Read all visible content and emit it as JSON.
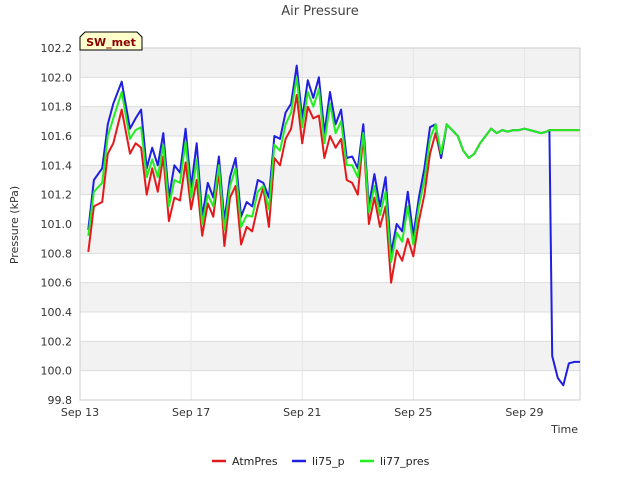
{
  "chart_data": {
    "type": "line",
    "title": "Air Pressure",
    "xlabel": "Time",
    "ylabel": "Pressure (kPa)",
    "badge": "SW_met",
    "ylim": [
      99.8,
      102.2
    ],
    "yticks": [
      "99.8",
      "100.0",
      "100.2",
      "100.4",
      "100.6",
      "100.8",
      "101.0",
      "101.2",
      "101.4",
      "101.6",
      "101.8",
      "102.0",
      "102.2"
    ],
    "xlim": [
      0,
      18
    ],
    "xticks": [
      {
        "day": 0,
        "label": "Sep 13"
      },
      {
        "day": 4,
        "label": "Sep 17"
      },
      {
        "day": 8,
        "label": "Sep 21"
      },
      {
        "day": 12,
        "label": "Sep 25"
      },
      {
        "day": 16,
        "label": "Sep 29"
      }
    ],
    "x": [
      0.3,
      0.5,
      0.8,
      1.0,
      1.2,
      1.5,
      1.8,
      2.0,
      2.2,
      2.4,
      2.6,
      2.8,
      3.0,
      3.2,
      3.4,
      3.6,
      3.8,
      4.0,
      4.2,
      4.4,
      4.6,
      4.8,
      5.0,
      5.2,
      5.4,
      5.6,
      5.8,
      6.0,
      6.2,
      6.4,
      6.6,
      6.8,
      7.0,
      7.2,
      7.4,
      7.6,
      7.8,
      8.0,
      8.2,
      8.4,
      8.6,
      8.8,
      9.0,
      9.2,
      9.4,
      9.6,
      9.8,
      10.0,
      10.2,
      10.4,
      10.6,
      10.8,
      11.0,
      11.2,
      11.4,
      11.6,
      11.8,
      12.0,
      12.2,
      12.4,
      12.6,
      12.8,
      13.0,
      13.2,
      13.4,
      13.6,
      13.8,
      14.0,
      14.2,
      14.4,
      14.6,
      14.8,
      15.0,
      15.2,
      15.4,
      15.6,
      15.8,
      16.0,
      16.2,
      16.4,
      16.6,
      16.8,
      16.9,
      17.0,
      17.2,
      17.4,
      17.6,
      17.8,
      18.0
    ],
    "series": [
      {
        "name": "AtmPres",
        "color": "#e31a1c",
        "values": [
          100.81,
          101.12,
          101.15,
          101.48,
          101.55,
          101.78,
          101.48,
          101.55,
          101.52,
          101.2,
          101.38,
          101.22,
          101.46,
          101.02,
          101.18,
          101.16,
          101.42,
          101.1,
          101.3,
          100.92,
          101.14,
          101.05,
          101.36,
          100.85,
          101.18,
          101.26,
          100.86,
          100.98,
          100.95,
          101.12,
          101.25,
          100.98,
          101.45,
          101.4,
          101.58,
          101.65,
          101.88,
          101.55,
          101.8,
          101.72,
          101.74,
          101.45,
          101.6,
          101.52,
          101.58,
          101.3,
          101.28,
          101.2,
          101.6,
          101.0,
          101.18,
          100.98,
          101.12,
          100.6,
          100.82,
          100.75,
          100.9,
          100.78,
          101.02,
          101.2,
          101.48,
          101.62,
          101.45,
          101.68,
          101.64,
          101.6,
          101.5,
          101.45,
          101.48,
          101.55,
          101.6,
          101.65,
          101.62,
          101.64,
          101.63,
          101.64,
          101.64,
          101.65,
          101.64,
          101.63,
          101.62,
          101.63,
          101.64,
          101.64,
          101.64,
          101.64,
          101.64,
          101.64,
          101.64
        ]
      },
      {
        "name": "li75_p",
        "color": "#1f1fe0",
        "values": [
          100.96,
          101.3,
          101.38,
          101.68,
          101.82,
          101.97,
          101.65,
          101.72,
          101.78,
          101.38,
          101.52,
          101.4,
          101.62,
          101.18,
          101.4,
          101.35,
          101.65,
          101.25,
          101.55,
          101.05,
          101.28,
          101.18,
          101.46,
          101.02,
          101.32,
          101.45,
          101.05,
          101.15,
          101.12,
          101.3,
          101.28,
          101.18,
          101.6,
          101.58,
          101.76,
          101.82,
          102.08,
          101.72,
          101.98,
          101.86,
          102.0,
          101.62,
          101.9,
          101.68,
          101.78,
          101.45,
          101.46,
          101.38,
          101.68,
          101.12,
          101.34,
          101.12,
          101.32,
          100.8,
          101.0,
          100.95,
          101.22,
          100.92,
          101.18,
          101.38,
          101.66,
          101.68,
          101.45,
          101.68,
          101.64,
          101.6,
          101.5,
          101.45,
          101.48,
          101.55,
          101.6,
          101.65,
          101.62,
          101.64,
          101.63,
          101.64,
          101.64,
          101.65,
          101.64,
          101.63,
          101.62,
          101.63,
          101.64,
          100.1,
          99.95,
          99.9,
          100.05,
          100.06,
          100.06
        ]
      },
      {
        "name": "li77_pres",
        "color": "#22ee22",
        "values": [
          100.92,
          101.22,
          101.28,
          101.6,
          101.72,
          101.9,
          101.58,
          101.64,
          101.66,
          101.32,
          101.44,
          101.32,
          101.54,
          101.12,
          101.3,
          101.28,
          101.56,
          101.18,
          101.44,
          101.0,
          101.2,
          101.12,
          101.4,
          100.96,
          101.26,
          101.38,
          100.98,
          101.06,
          101.05,
          101.22,
          101.26,
          101.1,
          101.54,
          101.5,
          101.68,
          101.76,
          102.0,
          101.66,
          101.9,
          101.8,
          101.92,
          101.55,
          101.82,
          101.62,
          101.7,
          101.4,
          101.4,
          101.32,
          101.62,
          101.08,
          101.26,
          101.06,
          101.22,
          100.74,
          100.94,
          100.88,
          101.12,
          100.86,
          101.12,
          101.3,
          101.58,
          101.68,
          101.48,
          101.68,
          101.64,
          101.6,
          101.5,
          101.45,
          101.48,
          101.55,
          101.6,
          101.65,
          101.62,
          101.64,
          101.63,
          101.64,
          101.64,
          101.65,
          101.64,
          101.63,
          101.62,
          101.63,
          101.64,
          101.64,
          101.64,
          101.64,
          101.64,
          101.64,
          101.64
        ]
      }
    ]
  }
}
